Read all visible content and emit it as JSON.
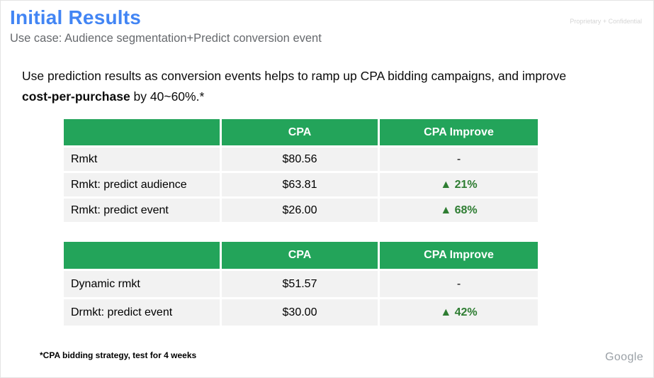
{
  "slide": {
    "title": "Initial Results",
    "subtitle": "Use case: Audience segmentation+Predict conversion event",
    "confidential": "Proprietary + Confidential",
    "body_line1": "Use prediction results as conversion events helps to ramp up CPA bidding campaigns, and improve",
    "body_bold": "cost-per-purchase",
    "body_rest": " by 40~60%.*",
    "footnote": "*CPA bidding strategy, test for 4 weeks",
    "brand": "Google"
  },
  "colors": {
    "accent_blue": "#4285f4",
    "header_green": "#23a45a",
    "improve_green": "#2e7d32",
    "row_gray": "#f2f2f2",
    "subtitle_gray": "#66696d",
    "brand_gray": "#9aa0a6"
  },
  "tables": [
    {
      "headers": [
        "",
        "CPA",
        "CPA Improve"
      ],
      "rows": [
        {
          "label": "Rmkt",
          "cpa": "$80.56",
          "improve": "-"
        },
        {
          "label": "Rmkt: predict audience",
          "cpa": "$63.81",
          "improve": "▲ 21%"
        },
        {
          "label": "Rmkt: predict event",
          "cpa": "$26.00",
          "improve": "▲ 68%"
        }
      ]
    },
    {
      "headers": [
        "",
        "CPA",
        "CPA Improve"
      ],
      "rows": [
        {
          "label": "Dynamic rmkt",
          "cpa": "$51.57",
          "improve": "-"
        },
        {
          "label": "Drmkt: predict event",
          "cpa": "$30.00",
          "improve": "▲ 42%"
        }
      ]
    }
  ]
}
